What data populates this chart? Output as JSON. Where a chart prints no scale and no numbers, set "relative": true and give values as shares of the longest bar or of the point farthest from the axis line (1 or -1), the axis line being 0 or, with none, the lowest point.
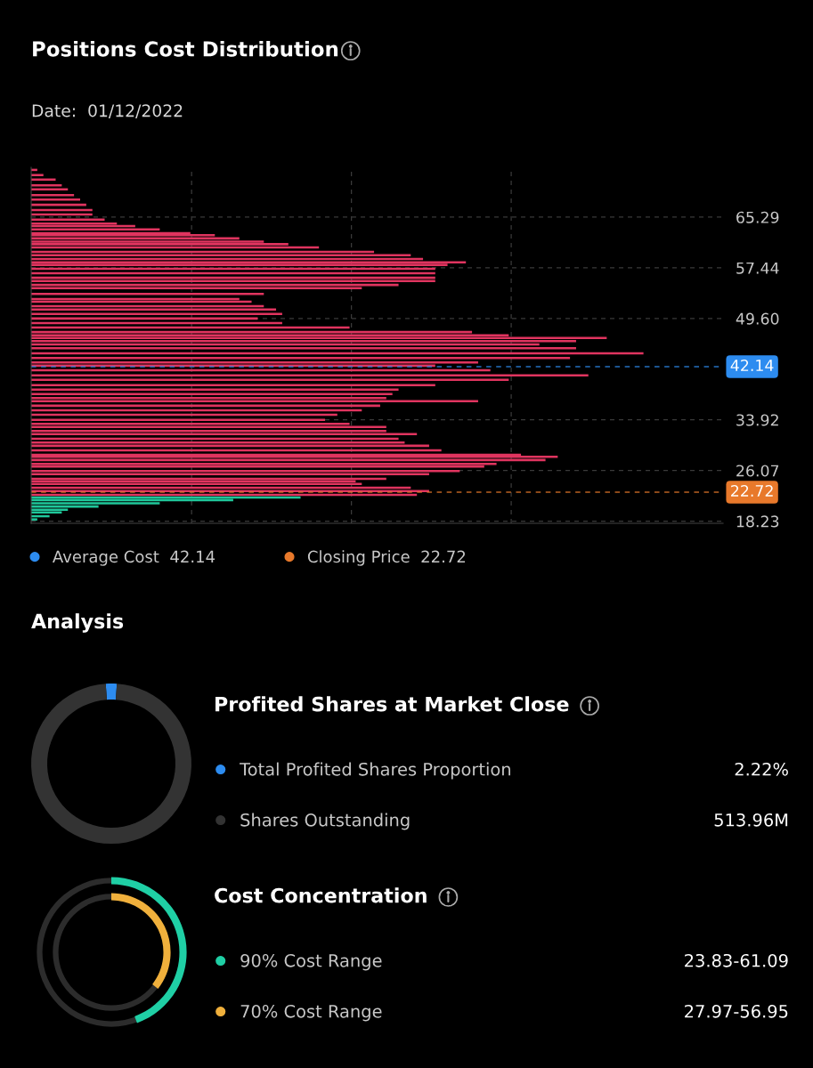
{
  "chart_data": [
    {
      "type": "bar",
      "orientation": "horizontal",
      "relative": true,
      "title": "Positions Cost Distribution",
      "subtitle": "Date:  01/12/2022",
      "series": [
        {
          "color": "#e0345f",
          "x": [
            72.6,
            71.8,
            71.1,
            70.2,
            69.6,
            68.7,
            68.0,
            67.2,
            66.4,
            65.7,
            64.9,
            64.3,
            63.9,
            63.4,
            62.8,
            62.5,
            62.0,
            61.5,
            61.1,
            60.6,
            59.9,
            59.4,
            58.8,
            58.3,
            57.9,
            57.3,
            56.6,
            55.9,
            55.4,
            54.8,
            54.3,
            53.4,
            52.6,
            52.2,
            51.5,
            51.0,
            50.3,
            49.6,
            48.9,
            48.2,
            47.5,
            47.0,
            46.6,
            46.1,
            45.6,
            45.0,
            44.2,
            43.5,
            42.8,
            42.3,
            41.6,
            40.8,
            40.1,
            39.3,
            38.6,
            37.9,
            37.3,
            36.8,
            36.1,
            35.4,
            34.7,
            33.9,
            33.3,
            32.8,
            32.2,
            31.7,
            31.0,
            30.4,
            29.9,
            29.2,
            28.5,
            28.2,
            27.7,
            27.1,
            26.7,
            26.0,
            25.5,
            24.8,
            24.4,
            24.0,
            23.4,
            22.9,
            22.3
          ],
          "values": [
            0.01,
            0.02,
            0.04,
            0.05,
            0.06,
            0.07,
            0.08,
            0.09,
            0.1,
            0.1,
            0.12,
            0.14,
            0.17,
            0.21,
            0.26,
            0.3,
            0.34,
            0.38,
            0.42,
            0.47,
            0.56,
            0.62,
            0.64,
            0.71,
            0.68,
            0.66,
            0.66,
            0.66,
            0.66,
            0.6,
            0.54,
            0.38,
            0.34,
            0.36,
            0.38,
            0.4,
            0.41,
            0.37,
            0.41,
            0.52,
            0.72,
            0.78,
            0.94,
            0.89,
            0.83,
            0.89,
            1,
            0.88,
            0.73,
            0.66,
            0.75,
            0.91,
            0.78,
            0.66,
            0.6,
            0.59,
            0.58,
            0.73,
            0.57,
            0.54,
            0.5,
            0.48,
            0.52,
            0.58,
            0.58,
            0.63,
            0.6,
            0.61,
            0.65,
            0.67,
            0.8,
            0.86,
            0.84,
            0.76,
            0.74,
            0.7,
            0.65,
            0.58,
            0.53,
            0.54,
            0.62,
            0.65,
            0.63
          ]
        },
        {
          "color": "#1fc79a",
          "x": [
            21.9,
            21.5,
            21.0,
            20.5,
            20.0,
            19.6,
            19.0,
            18.5
          ],
          "values": [
            0.44,
            0.33,
            0.21,
            0.11,
            0.06,
            0.05,
            0.03,
            0.01
          ]
        }
      ],
      "ylim": [
        17.9,
        73.0
      ],
      "yticks": [
        65.29,
        57.44,
        {
          "value": 49.6,
          "label": "49.60"
        },
        33.92,
        26.07,
        18.23
      ],
      "grid": true,
      "legend": "bottom",
      "annotations": [
        "Average Cost  42.14",
        "Closing Price  22.72"
      ],
      "ref_lines": [
        {
          "axis": "y",
          "value": 42.14,
          "label": "42.14",
          "color": "#2d8cf0",
          "line_style": "dashed"
        },
        {
          "axis": "y",
          "value": 22.72,
          "label": "22.72",
          "color": "#e8792b",
          "line_style": "dashed"
        }
      ]
    },
    {
      "type": "donut",
      "title": "Profited Shares at Market Close",
      "annotations": [
        "Analysis",
        "513.96M"
      ],
      "categories": [
        "Total Profited Shares Proportion",
        "Shares Outstanding"
      ],
      "values": [
        2.22,
        97.78
      ],
      "colors": [
        "#2d8cf0",
        "#333333"
      ],
      "value_labels": [
        "2.22%",
        null
      ],
      "legend": "right"
    },
    {
      "type": "other",
      "title": "Cost Concentration",
      "categories": [
        "90% Cost Range",
        "70% Cost Range"
      ],
      "colors": [
        "#1fcfa5",
        "#f0b03c"
      ],
      "value_labels": [
        "23.83-61.09",
        "27.97-56.95"
      ]
    }
  ]
}
